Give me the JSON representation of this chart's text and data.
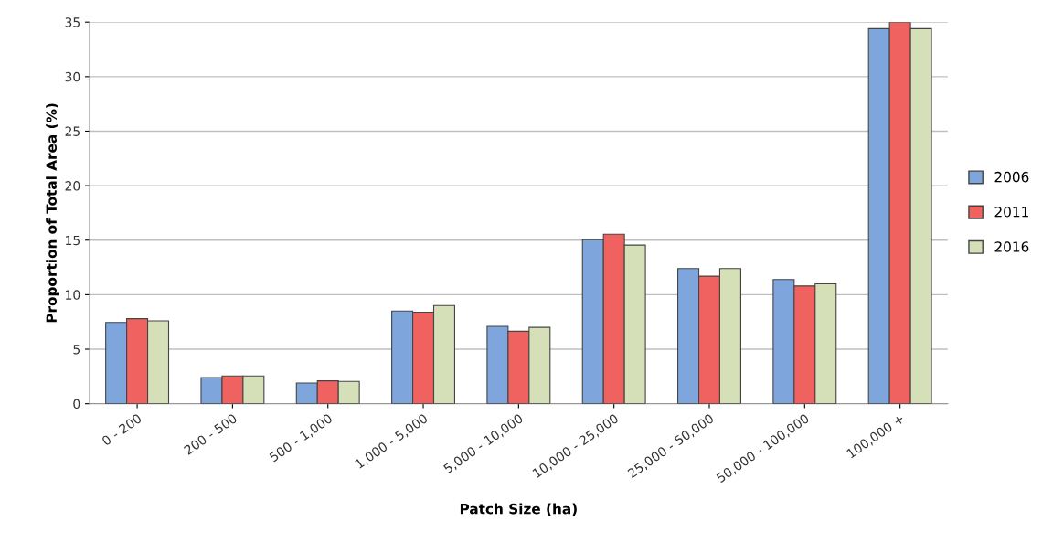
{
  "chart_data": {
    "type": "bar",
    "xlabel": "Patch Size (ha)",
    "ylabel": "Proportion of Total Area (%)",
    "categories": [
      "0 - 200",
      "200 - 500",
      "500 - 1,000",
      "1,000 - 5,000",
      "5,000 - 10,000",
      "10,000 - 25,000",
      "25,000 - 50,000",
      "50,000 - 100,000",
      "100,000 +"
    ],
    "series": [
      {
        "name": "2006",
        "color": "#7ea6dc",
        "values": [
          7.45,
          2.4,
          1.9,
          8.5,
          7.1,
          15.05,
          12.4,
          11.4,
          34.4
        ]
      },
      {
        "name": "2011",
        "color": "#f0625f",
        "values": [
          7.8,
          2.55,
          2.1,
          8.4,
          6.65,
          15.55,
          11.7,
          10.8,
          35.0
        ]
      },
      {
        "name": "2016",
        "color": "#d6e0b8",
        "values": [
          7.6,
          2.55,
          2.05,
          9.0,
          7.0,
          14.55,
          12.4,
          11.0,
          34.4
        ]
      }
    ],
    "ylim": [
      0,
      35
    ],
    "yticks": [
      0,
      5,
      10,
      15,
      20,
      25,
      30,
      35
    ],
    "grid": "y",
    "legend": "right"
  }
}
